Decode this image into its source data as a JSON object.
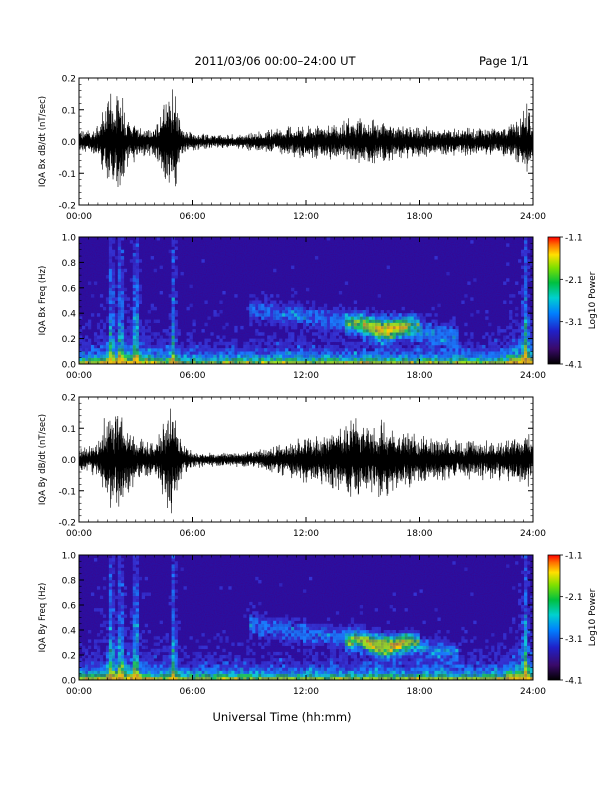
{
  "header": {
    "title": "2011/03/06  00:00–24:00 UT",
    "page": "Page 1/1"
  },
  "footer": {
    "xlabel": "Universal Time (hh:mm)"
  },
  "side_stamp": "",
  "colors": {
    "trace": "#000000",
    "axis": "#000000",
    "background": "#ffffff"
  },
  "chart_data": [
    {
      "type": "line",
      "ylabel": "IQA Bx dB/dt (nT/sec)",
      "xlim_hours": [
        0,
        24
      ],
      "ylim": [
        -0.2,
        0.2
      ],
      "x_ticks": [
        "00:00",
        "06:00",
        "12:00",
        "18:00",
        "24:00"
      ],
      "y_ticks": [
        "-0.2",
        "-0.1",
        "0.0",
        "0.1",
        "0.2"
      ],
      "series": [
        {
          "x_hours": [
            0,
            1,
            1.6,
            1.8,
            2.2,
            2.5,
            3,
            4,
            4.9,
            5.1,
            5.5,
            6,
            7,
            8,
            9,
            10,
            11,
            12,
            13,
            14,
            14.5,
            15,
            15.5,
            16,
            16.5,
            17,
            18,
            19,
            20,
            21,
            22,
            23,
            23.3,
            23.7,
            24
          ],
          "amplitude": [
            0.04,
            0.05,
            0.2,
            0.15,
            0.2,
            0.1,
            0.06,
            0.05,
            0.2,
            0.16,
            0.04,
            0.03,
            0.025,
            0.025,
            0.03,
            0.04,
            0.05,
            0.06,
            0.06,
            0.07,
            0.09,
            0.08,
            0.07,
            0.08,
            0.07,
            0.06,
            0.06,
            0.05,
            0.05,
            0.05,
            0.05,
            0.06,
            0.09,
            0.13,
            0.06
          ]
        }
      ]
    },
    {
      "type": "heatmap",
      "ylabel": "IQA Bx Freq (Hz)",
      "xlim_hours": [
        0,
        24
      ],
      "ylim": [
        0.0,
        1.0
      ],
      "x_ticks": [
        "00:00",
        "06:00",
        "12:00",
        "18:00",
        "24:00"
      ],
      "y_ticks": [
        "0.0",
        "0.2",
        "0.4",
        "0.6",
        "0.8",
        "1.0"
      ],
      "colorbar": {
        "label": "Log10 Power",
        "range": [
          -4.1,
          -1.1
        ],
        "ticks": [
          "-1.1",
          "-2.1",
          "-3.1",
          "-4.1"
        ]
      }
    },
    {
      "type": "line",
      "ylabel": "IQA By dB/dt (nT/sec)",
      "xlim_hours": [
        0,
        24
      ],
      "ylim": [
        -0.2,
        0.2
      ],
      "x_ticks": [
        "00:00",
        "06:00",
        "12:00",
        "18:00",
        "24:00"
      ],
      "y_ticks": [
        "-0.2",
        "-0.1",
        "0.0",
        "0.1",
        "0.2"
      ],
      "series": [
        {
          "x_hours": [
            0,
            1,
            1.6,
            1.8,
            2.2,
            2.5,
            3,
            4,
            4.9,
            5.1,
            5.5,
            6,
            7,
            8,
            9,
            10,
            11,
            12,
            13,
            14,
            14.5,
            15,
            15.5,
            16,
            16.5,
            17,
            18,
            19,
            20,
            21,
            22,
            23,
            23.3,
            23.7,
            24
          ],
          "amplitude": [
            0.04,
            0.06,
            0.2,
            0.15,
            0.2,
            0.12,
            0.08,
            0.06,
            0.2,
            0.15,
            0.05,
            0.03,
            0.025,
            0.025,
            0.03,
            0.04,
            0.06,
            0.08,
            0.1,
            0.12,
            0.16,
            0.13,
            0.12,
            0.16,
            0.13,
            0.1,
            0.09,
            0.08,
            0.07,
            0.07,
            0.07,
            0.08,
            0.1,
            0.12,
            0.07
          ]
        }
      ]
    },
    {
      "type": "heatmap",
      "ylabel": "IQA By Freq (Hz)",
      "xlim_hours": [
        0,
        24
      ],
      "ylim": [
        0.0,
        1.0
      ],
      "x_ticks": [
        "00:00",
        "06:00",
        "12:00",
        "18:00",
        "24:00"
      ],
      "y_ticks": [
        "0.0",
        "0.2",
        "0.4",
        "0.6",
        "0.8",
        "1.0"
      ],
      "colorbar": {
        "label": "Log10 Power",
        "range": [
          -4.1,
          -1.1
        ],
        "ticks": [
          "-1.1",
          "-2.1",
          "-3.1",
          "-4.1"
        ]
      }
    }
  ]
}
